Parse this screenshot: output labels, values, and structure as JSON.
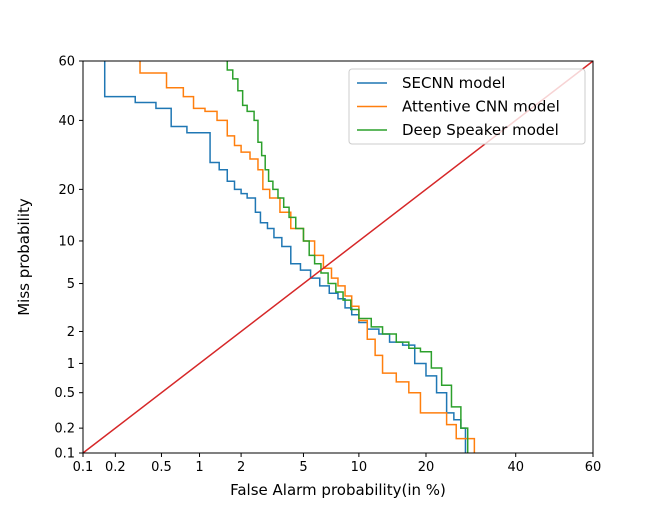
{
  "chart_data": {
    "type": "line",
    "title": "",
    "xlabel": "False Alarm probability(in %)",
    "ylabel": "Miss probability",
    "scale": "normal-deviate (DET)",
    "xlim": [
      0.1,
      60
    ],
    "ylim": [
      0.1,
      60
    ],
    "xticks": [
      0.1,
      0.2,
      0.5,
      1,
      2,
      5,
      10,
      20,
      40,
      60
    ],
    "xtick_labels": [
      "0.1",
      "0.2",
      "0.5",
      "1",
      "2",
      "5",
      "10",
      "20",
      "40",
      "60"
    ],
    "yticks": [
      0.1,
      0.2,
      0.5,
      1,
      2,
      5,
      10,
      20,
      40,
      60
    ],
    "ytick_labels": [
      "0.1",
      "0.2",
      "0.5",
      "1",
      "2",
      "5",
      "10",
      "20",
      "40",
      "60"
    ],
    "legend_position": "upper-right",
    "grid": false,
    "series": [
      {
        "name": "SECNN model",
        "color": "#1f77b4",
        "x": [
          0.16,
          0.16,
          0.3,
          0.3,
          0.45,
          0.45,
          0.6,
          0.6,
          0.8,
          0.8,
          1.2,
          1.2,
          1.4,
          1.4,
          1.6,
          1.6,
          1.8,
          1.8,
          2.0,
          2.0,
          2.2,
          2.2,
          2.5,
          2.5,
          2.7,
          2.7,
          3.0,
          3.0,
          3.3,
          3.3,
          3.7,
          3.7,
          4.2,
          4.2,
          4.8,
          4.8,
          5.5,
          5.5,
          6.2,
          6.2,
          7.0,
          7.0,
          7.8,
          7.8,
          8.5,
          8.5,
          9.2,
          9.2,
          10.0,
          10.0,
          11.0,
          11.0,
          12.5,
          12.5,
          14.0,
          14.0,
          16.0,
          16.0,
          18.0,
          18.0,
          20.0,
          20.0,
          22.0,
          22.0,
          24.0,
          24.0,
          25.5,
          25.5,
          27.0,
          27.0,
          28.0,
          28.0
        ],
        "y": [
          60,
          48,
          48,
          46,
          46,
          44,
          44,
          38,
          38,
          36,
          36,
          27,
          27,
          25,
          25,
          22,
          22,
          20,
          20,
          19,
          19,
          18,
          18,
          15,
          15,
          13,
          13,
          12,
          12,
          10.5,
          10.5,
          9.2,
          9.2,
          7.0,
          7.0,
          6.3,
          6.3,
          5.5,
          5.5,
          4.8,
          4.8,
          4.2,
          4.2,
          3.8,
          3.8,
          3.2,
          3.2,
          2.8,
          2.8,
          2.4,
          2.4,
          2.1,
          2.1,
          1.9,
          1.9,
          1.6,
          1.6,
          1.5,
          1.5,
          1.0,
          1.0,
          0.75,
          0.75,
          0.5,
          0.5,
          0.3,
          0.3,
          0.25,
          0.25,
          0.2,
          0.2,
          0.1
        ]
      },
      {
        "name": "Attentive CNN model",
        "color": "#ff7f0e",
        "x": [
          0.33,
          0.33,
          0.55,
          0.55,
          0.75,
          0.75,
          0.9,
          0.9,
          1.1,
          1.1,
          1.35,
          1.35,
          1.6,
          1.6,
          1.8,
          1.8,
          2.0,
          2.0,
          2.3,
          2.3,
          2.6,
          2.6,
          2.8,
          2.8,
          3.1,
          3.1,
          3.6,
          3.6,
          4.2,
          4.2,
          5.0,
          5.0,
          5.8,
          5.8,
          6.5,
          6.5,
          7.2,
          7.2,
          7.8,
          7.8,
          8.5,
          8.5,
          9.2,
          9.2,
          10.0,
          10.0,
          11.0,
          11.0,
          12.0,
          12.0,
          13.0,
          13.0,
          15.0,
          15.0,
          17.0,
          17.0,
          19.0,
          19.0,
          22.0,
          22.0,
          24.0,
          24.0,
          26.0,
          26.0,
          28.0,
          28.0,
          30.0,
          30.0
        ],
        "y": [
          60,
          56,
          56,
          51,
          51,
          48,
          48,
          44,
          44,
          43,
          43,
          40,
          40,
          35,
          35,
          32,
          32,
          30,
          30,
          28,
          28,
          25,
          25,
          20,
          20,
          18,
          18,
          15,
          15,
          12,
          12,
          10,
          10,
          8,
          8,
          6.5,
          6.5,
          5.5,
          5.5,
          4.8,
          4.8,
          4.0,
          4.0,
          3.3,
          3.3,
          2.5,
          2.5,
          1.7,
          1.7,
          1.2,
          1.2,
          0.8,
          0.8,
          0.65,
          0.65,
          0.5,
          0.5,
          0.3,
          0.3,
          0.3,
          0.3,
          0.22,
          0.22,
          0.15,
          0.15,
          0.15,
          0.15,
          0.1
        ]
      },
      {
        "name": "Deep Speaker model",
        "color": "#2ca02c",
        "x": [
          1.6,
          1.6,
          1.75,
          1.75,
          1.9,
          1.9,
          2.05,
          2.05,
          2.2,
          2.2,
          2.45,
          2.45,
          2.6,
          2.6,
          2.75,
          2.75,
          2.9,
          2.9,
          3.05,
          3.05,
          3.25,
          3.25,
          3.5,
          3.5,
          3.8,
          3.8,
          4.1,
          4.1,
          4.5,
          4.5,
          5.0,
          5.0,
          5.4,
          5.4,
          5.8,
          5.8,
          6.3,
          6.3,
          6.9,
          6.9,
          7.6,
          7.6,
          8.3,
          8.3,
          9.1,
          9.1,
          10.0,
          10.0,
          11.5,
          11.5,
          13.0,
          13.0,
          15.0,
          15.0,
          17.0,
          17.0,
          19.0,
          19.0,
          21.0,
          21.0,
          23.0,
          23.0,
          25.0,
          25.0,
          27.0,
          27.0,
          28.5,
          28.5
        ],
        "y": [
          60,
          57,
          57,
          54,
          54,
          50,
          50,
          45,
          45,
          43,
          43,
          40,
          40,
          33,
          33,
          29,
          29,
          25,
          25,
          22,
          22,
          20,
          20,
          18,
          18,
          16,
          16,
          14,
          14,
          12,
          12,
          10,
          10,
          8,
          8,
          7,
          7,
          6,
          6,
          5,
          5,
          4.3,
          4.3,
          3.7,
          3.7,
          3.1,
          3.1,
          2.6,
          2.6,
          2.2,
          2.2,
          1.9,
          1.9,
          1.6,
          1.6,
          1.4,
          1.4,
          1.3,
          1.3,
          0.9,
          0.9,
          0.6,
          0.6,
          0.35,
          0.35,
          0.2,
          0.2,
          0.1
        ]
      },
      {
        "name": "",
        "color": "#d62728",
        "x": [
          0.1,
          60
        ],
        "y": [
          0.1,
          60
        ]
      }
    ]
  }
}
